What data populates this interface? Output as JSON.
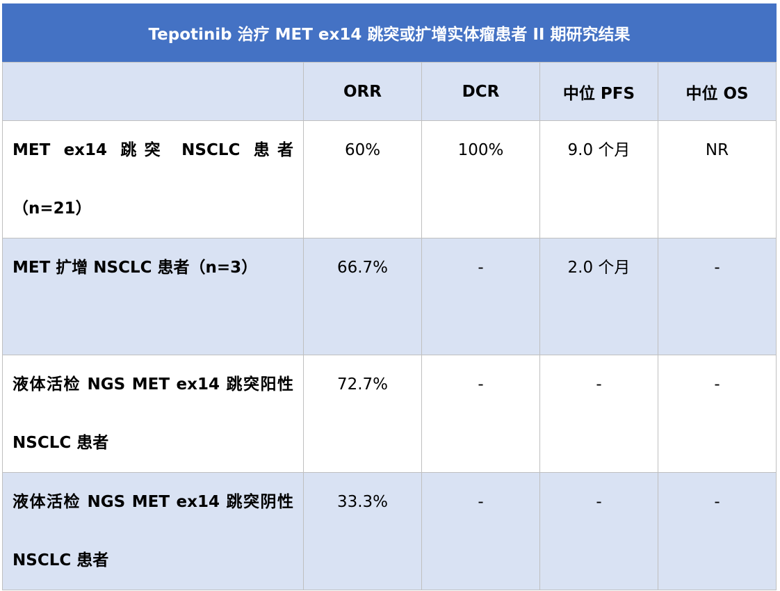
{
  "table": {
    "title": "Tepotinib 治疗 MET ex14 跳突或扩增实体瘤患者 II 期研究结果",
    "headers": [
      "",
      "ORR",
      "DCR",
      "中位 PFS",
      "中位 OS"
    ],
    "rows": [
      {
        "label": "MET ex14 跳突 NSCLC 患者（n=21）",
        "orr": "60%",
        "dcr": "100%",
        "pfs": "9.0 个月",
        "os": "NR"
      },
      {
        "label": "MET 扩增 NSCLC 患者（n=3）",
        "orr": "66.7%",
        "dcr": "-",
        "pfs": "2.0 个月",
        "os": "-"
      },
      {
        "label": "液体活检 NGS MET ex14 跳突阳性 NSCLC 患者",
        "orr": "72.7%",
        "dcr": "-",
        "pfs": "-",
        "os": "-"
      },
      {
        "label": "液体活检 NGS MET ex14 跳突阴性 NSCLC 患者",
        "orr": "33.3%",
        "dcr": "-",
        "pfs": "-",
        "os": "-"
      }
    ]
  },
  "colors": {
    "title_bg": "#4472c4",
    "header_bg": "#d9e2f3",
    "shade_bg": "#d9e2f3",
    "border": "#bfbfbf"
  }
}
